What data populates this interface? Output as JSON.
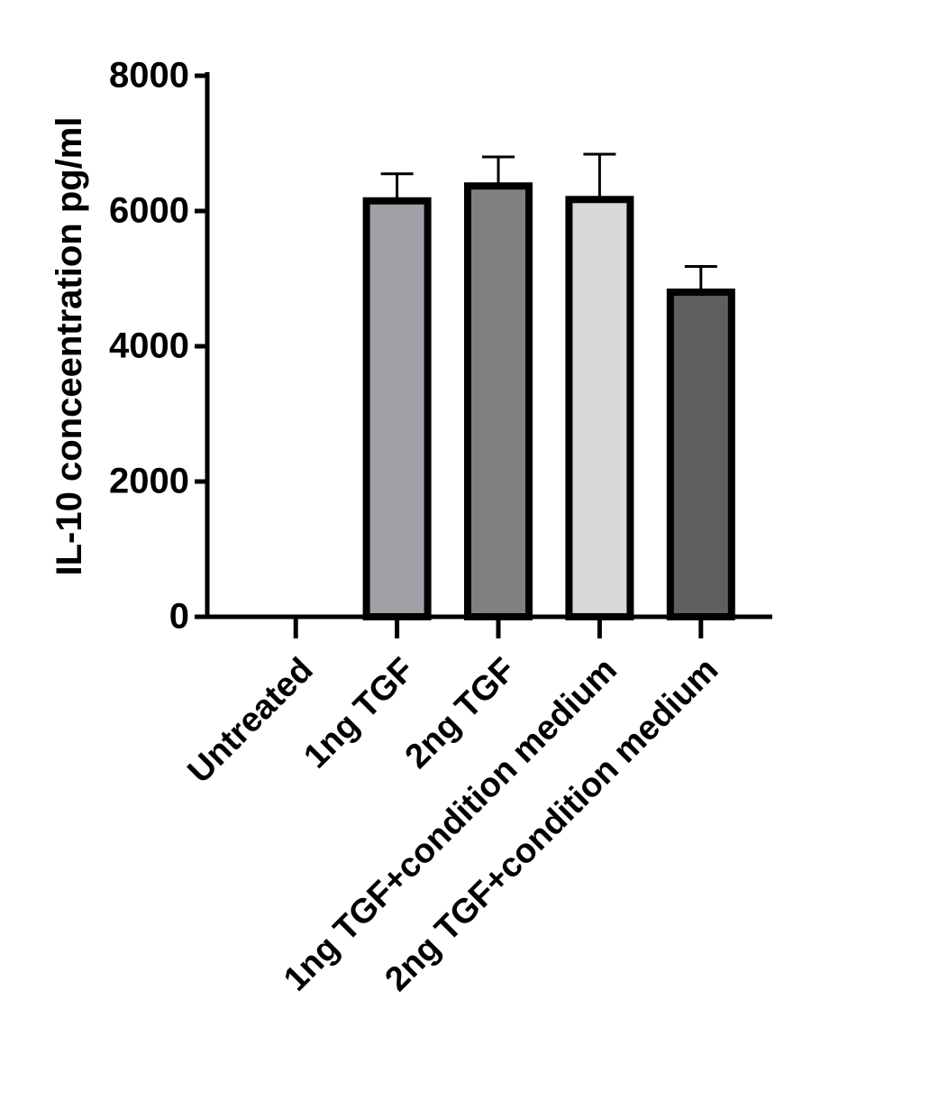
{
  "chart_data": {
    "type": "bar",
    "y_label": "IL-10 conceentration pg/ml",
    "categories": [
      "Untreated",
      "1ng TGF",
      "2ng TGF",
      "1ng TGF+condition medium",
      "2ng TGF+condition medium"
    ],
    "values": [
      0,
      6150,
      6370,
      6170,
      4800
    ],
    "errors": [
      null,
      400,
      430,
      670,
      380
    ],
    "colors": [
      "#a0a0a6",
      "#a0a0a6",
      "#808080",
      "#d8d8d8",
      "#5f5f5f"
    ],
    "ylim": [
      0,
      8000
    ],
    "yticks": [
      0,
      2000,
      4000,
      6000,
      8000
    ]
  }
}
